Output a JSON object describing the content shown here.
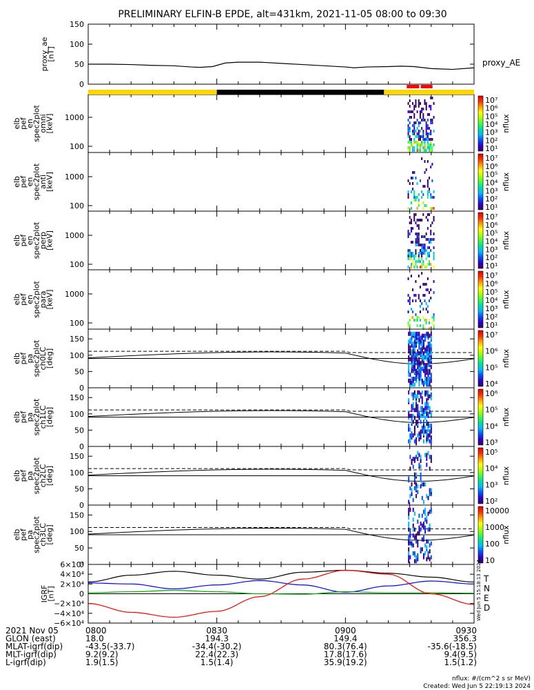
{
  "title": "PRELIMINARY ELFIN-B EPDE, alt=431km, 2021-11-05 08:00 to 09:30",
  "colors": {
    "day_bar": "#ffd700",
    "night_bar": "#000000",
    "science_zone": "#ff0000",
    "bx": "#000000",
    "by": "#0000ff",
    "bz": "#00b000",
    "bd": "#ff0000"
  },
  "chart_data": [
    {
      "type": "line",
      "panel": "proxy_ae",
      "ylabel": [
        "proxy_ae",
        "[nT]"
      ],
      "yticks": [
        "150",
        "100",
        "50",
        "0"
      ],
      "ylim": [
        0,
        150
      ],
      "legend": "proxy_AE",
      "x_minutes": [
        0,
        5,
        10,
        15,
        20,
        24,
        26,
        29,
        32,
        35,
        40,
        45,
        50,
        55,
        60,
        62,
        65,
        70,
        73,
        76,
        80,
        85,
        90
      ],
      "values": [
        50,
        50,
        49,
        47,
        46,
        43,
        42,
        44,
        53,
        55,
        55,
        52,
        49,
        46,
        43,
        41,
        43,
        44,
        45,
        44,
        39,
        37,
        41
      ]
    },
    {
      "type": "heatmap",
      "panel": "omni",
      "ylabel": [
        "elb",
        "pef",
        "en",
        "spec2plot",
        "omni",
        "[keV]"
      ],
      "yticks": [
        "1000",
        "100"
      ],
      "colorbar_ticks": [
        "10⁷",
        "10⁶",
        "10⁵",
        "10⁴",
        "10³",
        "10²",
        "10¹"
      ],
      "colorbar_label": "nflux"
    },
    {
      "type": "heatmap",
      "panel": "anti",
      "ylabel": [
        "elb",
        "pef",
        "en",
        "spec2plot",
        "anti",
        "[keV]"
      ],
      "yticks": [
        "1000",
        "100"
      ],
      "colorbar_ticks": [
        "10⁷",
        "10⁶",
        "10⁵",
        "10⁴",
        "10³",
        "10²",
        "10¹"
      ],
      "colorbar_label": "nflux"
    },
    {
      "type": "heatmap",
      "panel": "perp",
      "ylabel": [
        "elb",
        "pef",
        "en",
        "spec2plot",
        "perp",
        "[keV]"
      ],
      "yticks": [
        "1000",
        "100"
      ],
      "colorbar_ticks": [
        "10⁷",
        "10⁶",
        "10⁵",
        "10⁴",
        "10³",
        "10²",
        "10¹"
      ],
      "colorbar_label": "nflux"
    },
    {
      "type": "heatmap",
      "panel": "para",
      "ylabel": [
        "elb",
        "pef",
        "en",
        "spec2plot",
        "para",
        "[keV]"
      ],
      "yticks": [
        "1000",
        "100"
      ],
      "colorbar_ticks": [
        "10⁷",
        "10⁶",
        "10⁵",
        "10⁴",
        "10³",
        "10²",
        "10¹"
      ],
      "colorbar_label": "nflux"
    },
    {
      "type": "heatmap",
      "panel": "ch0LC",
      "ylabel": [
        "elb",
        "pef",
        "pa",
        "spec2plot",
        "ch0LC",
        "[deg]"
      ],
      "yticks": [
        "150",
        "100",
        "50",
        "0"
      ],
      "ylim": [
        0,
        180
      ],
      "colorbar_ticks": [
        "10⁷",
        "10⁶",
        "10⁵",
        "10⁴"
      ],
      "colorbar_label": "nflux"
    },
    {
      "type": "heatmap",
      "panel": "ch1LC",
      "ylabel": [
        "elb",
        "pef",
        "pa",
        "spec2plot",
        "ch1LC",
        "[deg]"
      ],
      "yticks": [
        "150",
        "100",
        "50",
        "0"
      ],
      "ylim": [
        0,
        180
      ],
      "colorbar_ticks": [
        "10⁶",
        "10⁵",
        "10⁴",
        "10³"
      ],
      "colorbar_label": "nflux"
    },
    {
      "type": "heatmap",
      "panel": "ch2LC",
      "ylabel": [
        "elb",
        "pef",
        "pa",
        "spec2plot",
        "ch2LC",
        "[deg]"
      ],
      "yticks": [
        "150",
        "100",
        "50",
        "0"
      ],
      "ylim": [
        0,
        180
      ],
      "colorbar_ticks": [
        "10⁵",
        "10⁴",
        "10³",
        "10²"
      ],
      "colorbar_label": "nflux"
    },
    {
      "type": "heatmap",
      "panel": "ch3LC",
      "ylabel": [
        "elb",
        "pef",
        "pa",
        "spec2plot",
        "ch3LC",
        "[deg]"
      ],
      "yticks": [
        "150",
        "100",
        "50",
        "0"
      ],
      "ylim": [
        0,
        180
      ],
      "colorbar_ticks": [
        "10000",
        "1000",
        "100",
        "10"
      ],
      "colorbar_label": "nflux"
    },
    {
      "type": "line",
      "panel": "IGRF",
      "ylabel": [
        "IGRF",
        "[nT]"
      ],
      "yticks": [
        "6×10⁴",
        "4×10⁴",
        "2×10⁴",
        "0",
        "−2×10⁴",
        "−4×10⁴",
        "−6×10⁴"
      ],
      "ylim": [
        -60000,
        60000
      ],
      "legend": [
        "T",
        "N",
        "E",
        "D"
      ],
      "x_minutes": [
        0,
        10,
        20,
        30,
        40,
        50,
        60,
        70,
        80,
        90
      ],
      "series": [
        {
          "name": "T",
          "values": [
            24000,
            38000,
            46000,
            38000,
            30000,
            44000,
            48000,
            42000,
            34000,
            24000
          ]
        },
        {
          "name": "N",
          "values": [
            22000,
            20000,
            10000,
            18000,
            27000,
            18000,
            3000,
            16000,
            26000,
            20000
          ]
        },
        {
          "name": "E",
          "values": [
            2000,
            4000,
            7000,
            4000,
            0,
            -1000,
            4000,
            2000,
            2000,
            1000
          ]
        },
        {
          "name": "D",
          "values": [
            -20000,
            -38000,
            -48000,
            -36000,
            -6000,
            30000,
            48000,
            40000,
            0,
            -22000
          ]
        }
      ]
    }
  ],
  "x_axis": {
    "ticks": [
      "0800",
      "0830",
      "0900",
      "0930"
    ],
    "rows": [
      {
        "label": "2021 Nov 05",
        "vals": [
          "0800",
          "0830",
          "0900",
          "0930"
        ]
      },
      {
        "label": "GLON (east)",
        "vals": [
          "18.0",
          "194.3",
          "149.4",
          "356.3"
        ]
      },
      {
        "label": "MLAT-igrf(dip)",
        "vals": [
          "-43.5(-33.7)",
          "-34.4(-30.2)",
          "80.3(76.4)",
          "-35.6(-18.5)"
        ]
      },
      {
        "label": "MLT-igrf(dip)",
        "vals": [
          "9.2(9.2)",
          "22.4(22.3)",
          "17.8(17.6)",
          "9.4(9.5)"
        ]
      },
      {
        "label": "L-igrf(dip)",
        "vals": [
          "1.9(1.5)",
          "1.5(1.4)",
          "35.9(19.2)",
          "1.5(1.2)"
        ]
      }
    ]
  },
  "footer": {
    "units": "nflux: #/(cm^2 s sr MeV)",
    "created": "Created: Wed Jun  5 22:19:13 2024",
    "vertical_stamp": "Wed Jun  5 15:18:13 2024"
  }
}
